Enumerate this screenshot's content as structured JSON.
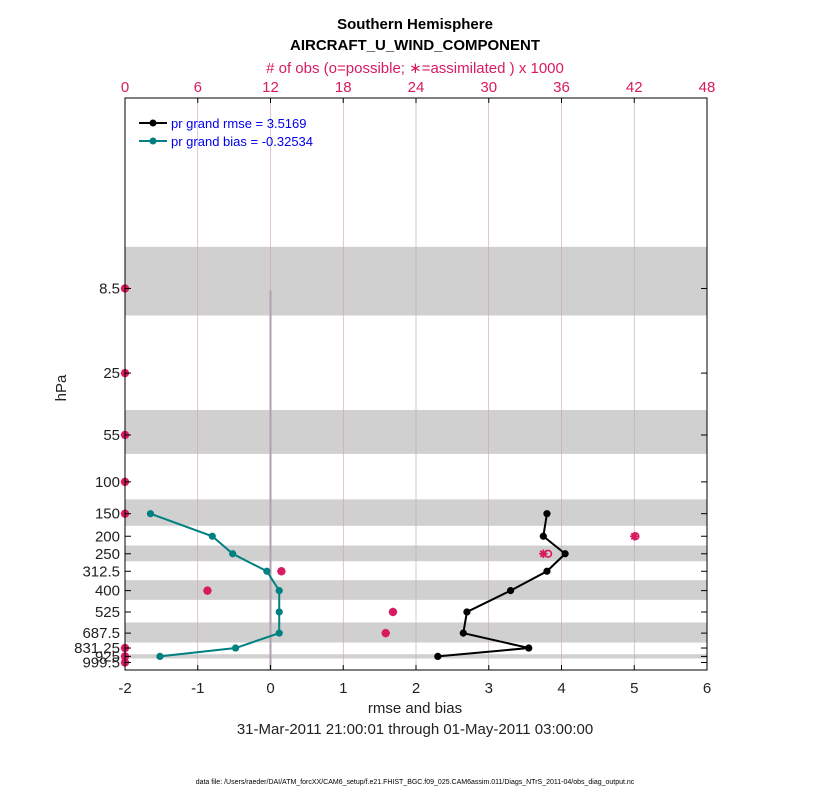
{
  "chart_data": {
    "type": "line",
    "title": "Southern Hemisphere",
    "subtitle": "AIRCRAFT_U_WIND_COMPONENT",
    "xlabel": "rmse and bias",
    "ylabel": "hPa",
    "x2label": "# of obs (o=possible; ∗=assimilated ) x 1000",
    "date_range": "31-Mar-2011 21:00:01 through 01-May-2011 03:00:00",
    "footnote": "data file: /Users/raeder/DAI/ATM_forcXX/CAM6_setup/f.e21.FHIST_BGC.f09_025.CAM6assim.011/Diags_NTrS_2011-04/obs_diag_output.nc",
    "xlim": [
      -2,
      6
    ],
    "x2lim": [
      0,
      48
    ],
    "xticks": [
      "-2",
      "-1",
      "0",
      "1",
      "2",
      "3",
      "4",
      "5",
      "6"
    ],
    "x2ticks": [
      "0",
      "6",
      "12",
      "18",
      "24",
      "30",
      "36",
      "42",
      "48"
    ],
    "levels": [
      8.5,
      25,
      55,
      100,
      150,
      200,
      250,
      312.5,
      400,
      525,
      687.5,
      831.25,
      925,
      999.5
    ],
    "level_labels": [
      "8.5",
      "25",
      "55",
      "100",
      "150",
      "200",
      "250",
      "312.5",
      "400",
      "525",
      "687.5",
      "831.25",
      "925",
      "999.5"
    ],
    "shaded_bands": [
      [
        5,
        12
      ],
      [
        40,
        70
      ],
      [
        125,
        175
      ],
      [
        225,
        275
      ],
      [
        350,
        450
      ],
      [
        600,
        775
      ],
      [
        900,
        950
      ]
    ],
    "legend": {
      "rmse_label": "pr grand rmse = 3.5169",
      "bias_label": "pr grand bias = -0.32534"
    },
    "series": [
      {
        "name": "rmse",
        "color": "#000000",
        "points": [
          {
            "level": 150,
            "value": 3.8
          },
          {
            "level": 200,
            "value": 3.75
          },
          {
            "level": 250,
            "value": 4.05
          },
          {
            "level": 312.5,
            "value": 3.8
          },
          {
            "level": 400,
            "value": 3.3
          },
          {
            "level": 525,
            "value": 2.7
          },
          {
            "level": 687.5,
            "value": 2.65
          },
          {
            "level": 831.25,
            "value": 3.55
          },
          {
            "level": 925,
            "value": 2.3
          }
        ]
      },
      {
        "name": "bias",
        "color": "#008080",
        "points": [
          {
            "level": 150,
            "value": -1.65
          },
          {
            "level": 200,
            "value": -0.8
          },
          {
            "level": 250,
            "value": -0.52
          },
          {
            "level": 312.5,
            "value": -0.05
          },
          {
            "level": 400,
            "value": 0.12
          },
          {
            "level": 525,
            "value": 0.12
          },
          {
            "level": 687.5,
            "value": 0.12
          },
          {
            "level": 831.25,
            "value": -0.48
          },
          {
            "level": 925,
            "value": -1.52
          }
        ]
      }
    ],
    "obs_possible": [
      {
        "level": 8.5,
        "count": 0
      },
      {
        "level": 25,
        "count": 0
      },
      {
        "level": 55,
        "count": 0
      },
      {
        "level": 100,
        "count": 0
      },
      {
        "level": 150,
        "count": 0
      },
      {
        "level": 200,
        "count": 42.1
      },
      {
        "level": 250,
        "count": 34.9
      },
      {
        "level": 312.5,
        "count": 12.9
      },
      {
        "level": 400,
        "count": 6.8
      },
      {
        "level": 525,
        "count": 22.1
      },
      {
        "level": 687.5,
        "count": 21.5
      },
      {
        "level": 831.25,
        "count": 0
      },
      {
        "level": 925,
        "count": 0
      },
      {
        "level": 999.5,
        "count": 0
      }
    ],
    "obs_assimilated": [
      {
        "level": 8.5,
        "count": 0
      },
      {
        "level": 25,
        "count": 0
      },
      {
        "level": 55,
        "count": 0
      },
      {
        "level": 100,
        "count": 0
      },
      {
        "level": 150,
        "count": 0
      },
      {
        "level": 200,
        "count": 42.0
      },
      {
        "level": 250,
        "count": 34.5
      },
      {
        "level": 312.5,
        "count": 12.9
      },
      {
        "level": 400,
        "count": 6.8
      },
      {
        "level": 525,
        "count": 22.1
      },
      {
        "level": 687.5,
        "count": 21.5
      },
      {
        "level": 831.25,
        "count": 0
      },
      {
        "level": 925,
        "count": 0
      },
      {
        "level": 999.5,
        "count": 0
      }
    ],
    "colors": {
      "obs": "#d81b60",
      "zero_line": "#b0a0b0",
      "band": "#d0d0d0",
      "grid": "#c8a0b4"
    }
  }
}
